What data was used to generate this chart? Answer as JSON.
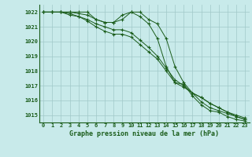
{
  "title": "Graphe pression niveau de la mer (hPa)",
  "x_labels": [
    "0",
    "1",
    "2",
    "3",
    "4",
    "5",
    "6",
    "7",
    "8",
    "9",
    "10",
    "11",
    "12",
    "13",
    "14",
    "15",
    "16",
    "17",
    "18",
    "19",
    "20",
    "21",
    "22",
    "23"
  ],
  "ylim": [
    1014.5,
    1022.5
  ],
  "yticks": [
    1015,
    1016,
    1017,
    1018,
    1019,
    1020,
    1021,
    1022
  ],
  "background_color": "#c8eaea",
  "grid_color": "#a0c8c8",
  "line_color": "#1a5c1a",
  "line1": [
    1022.0,
    1022.0,
    1022.0,
    1022.0,
    1022.0,
    1022.0,
    1021.5,
    1021.3,
    1021.3,
    1021.5,
    1022.0,
    1021.7,
    1021.2,
    1020.2,
    1018.3,
    1017.2,
    1017.1,
    1016.3,
    1015.7,
    1015.3,
    1015.2,
    1014.9,
    1014.7,
    1014.6
  ],
  "line2": [
    1022.0,
    1022.0,
    1022.0,
    1021.8,
    1021.7,
    1021.4,
    1021.0,
    1020.7,
    1020.5,
    1020.5,
    1020.3,
    1019.8,
    1019.3,
    1018.8,
    1018.0,
    1017.2,
    1016.9,
    1016.5,
    1016.2,
    1015.8,
    1015.5,
    1015.2,
    1015.0,
    1014.8
  ],
  "line3": [
    1022.0,
    1022.0,
    1022.0,
    1021.9,
    1021.7,
    1021.5,
    1021.2,
    1021.0,
    1020.8,
    1020.8,
    1020.6,
    1020.1,
    1019.6,
    1019.0,
    1018.2,
    1017.4,
    1017.0,
    1016.5,
    1016.2,
    1015.8,
    1015.5,
    1015.2,
    1014.9,
    1014.7
  ],
  "line4": [
    1022.0,
    1022.0,
    1022.0,
    1022.0,
    1021.9,
    1021.8,
    1021.5,
    1021.3,
    1021.3,
    1021.8,
    1022.0,
    1022.0,
    1021.5,
    1021.2,
    1020.2,
    1018.3,
    1017.2,
    1016.5,
    1015.9,
    1015.5,
    1015.3,
    1015.1,
    1014.9,
    1014.7
  ]
}
